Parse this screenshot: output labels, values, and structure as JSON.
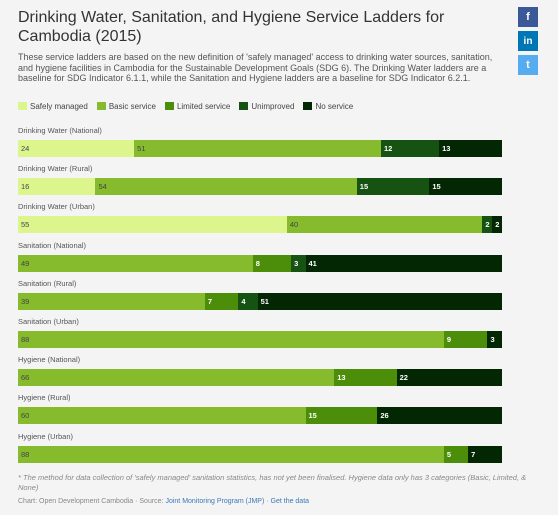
{
  "title": "Drinking Water, Sanitation, and Hygiene Service Ladders for Cambodia (2015)",
  "description": "These service ladders are based on the new definition of 'safely managed' access to drinking water sources, sanitation, and hygiene facilities in Cambodia for the Sustainable Development Goals (SDG 6). The Drinking Water ladders are a baseline for SDG Indicator 6.1.1, while the Sanitation and Hygiene ladders are a baseline for SDG Indicator 6.2.1.",
  "footnote": "* The method for data collection of 'safely managed' sanitation statistics, has not yet been finalised. Hygiene data only has 3 categories (Basic, Limited, & None)",
  "credits": {
    "prefix": "Chart: Open Development Cambodia · Source: ",
    "source_link": "Joint Monitoring Program (JMP)",
    "separator": " · ",
    "data_link": "Get the data"
  },
  "social": {
    "facebook": "f",
    "linkedin": "in",
    "twitter": "t"
  },
  "chart_data": {
    "type": "bar",
    "orientation": "horizontal-stacked",
    "xlim": [
      0,
      100
    ],
    "legend_position": "top-left",
    "colors": {
      "Safely managed": "#dcf58c",
      "Basic service": "#86bb2e",
      "Limited service": "#4c8e0a",
      "Unimproved": "#165212",
      "No service": "#032703"
    },
    "series": [
      "Safely managed",
      "Basic service",
      "Limited service",
      "Unimproved",
      "No service"
    ],
    "categories": [
      "Drinking Water (National)",
      "Drinking Water (Rural)",
      "Drinking Water (Urban)",
      "Sanitation (National)",
      "Sanitation (Rural)",
      "Sanitation (Urban)",
      "Hygiene (National)",
      "Hygiene (Rural)",
      "Hygiene (Urban)"
    ],
    "rows": [
      [
        {
          "series": "Safely managed",
          "value": 24
        },
        {
          "series": "Basic service",
          "value": 51
        },
        {
          "series": "Unimproved",
          "value": 12
        },
        {
          "series": "No service",
          "value": 13
        }
      ],
      [
        {
          "series": "Safely managed",
          "value": 16
        },
        {
          "series": "Basic service",
          "value": 54
        },
        {
          "series": "Unimproved",
          "value": 15
        },
        {
          "series": "No service",
          "value": 15
        }
      ],
      [
        {
          "series": "Safely managed",
          "value": 55
        },
        {
          "series": "Basic service",
          "value": 40
        },
        {
          "series": "Unimproved",
          "value": 2
        },
        {
          "series": "No service",
          "value": 2
        }
      ],
      [
        {
          "series": "Basic service",
          "value": 49
        },
        {
          "series": "Limited service",
          "value": 8
        },
        {
          "series": "Unimproved",
          "value": 3
        },
        {
          "series": "No service",
          "value": 41
        }
      ],
      [
        {
          "series": "Basic service",
          "value": 39
        },
        {
          "series": "Limited service",
          "value": 7
        },
        {
          "series": "Unimproved",
          "value": 4
        },
        {
          "series": "No service",
          "value": 51
        }
      ],
      [
        {
          "series": "Basic service",
          "value": 88
        },
        {
          "series": "Limited service",
          "value": 9
        },
        {
          "series": "Unimproved",
          "value": 0
        },
        {
          "series": "No service",
          "value": 3
        }
      ],
      [
        {
          "series": "Basic service",
          "value": 66
        },
        {
          "series": "Limited service",
          "value": 13
        },
        {
          "series": "No service",
          "value": 22
        }
      ],
      [
        {
          "series": "Basic service",
          "value": 60
        },
        {
          "series": "Limited service",
          "value": 15
        },
        {
          "series": "No service",
          "value": 26
        }
      ],
      [
        {
          "series": "Basic service",
          "value": 88
        },
        {
          "series": "Limited service",
          "value": 5
        },
        {
          "series": "No service",
          "value": 7
        }
      ]
    ]
  }
}
